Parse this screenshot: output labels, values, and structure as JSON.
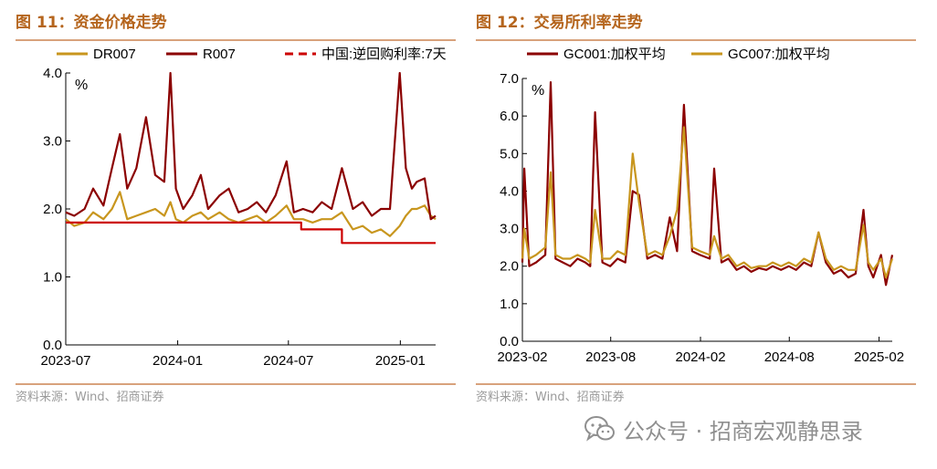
{
  "left": {
    "title": "图 11：资金价格走势",
    "source": "资料来源：Wind、招商证券"
  },
  "right": {
    "title": "图 12：交易所利率走势",
    "source": "资料来源：Wind、招商证券"
  },
  "watermark": {
    "icon": "wechat-icon",
    "text": "公众号 · 招商宏观静思录"
  },
  "colors": {
    "dark_red": "#8b0000",
    "gold": "#c8961e",
    "red": "#cc0000",
    "title": "#b5651d"
  },
  "chart_data": [
    {
      "type": "line",
      "unit_label": "%",
      "ylim": [
        0,
        4.0
      ],
      "yticks": [
        "0.0",
        "1.0",
        "2.0",
        "3.0",
        "4.0"
      ],
      "xticks": [
        {
          "date": "2023-07-01",
          "label": "2023-07"
        },
        {
          "date": "2024-01-01",
          "label": "2024-01"
        },
        {
          "date": "2024-07-01",
          "label": "2024-07"
        },
        {
          "date": "2025-01-01",
          "label": "2025-01"
        }
      ],
      "xrange": [
        "2023-07-01",
        "2025-02-28"
      ],
      "grid": false,
      "legend": "top",
      "series": [
        {
          "name": "DR007",
          "style": "solid",
          "color": "#c8961e",
          "x": [
            "2023-07-01",
            "2023-07-15",
            "2023-08-01",
            "2023-08-15",
            "2023-09-01",
            "2023-09-15",
            "2023-09-28",
            "2023-10-10",
            "2023-10-25",
            "2023-11-10",
            "2023-11-25",
            "2023-12-10",
            "2023-12-20",
            "2023-12-29",
            "2024-01-10",
            "2024-01-25",
            "2024-02-08",
            "2024-02-20",
            "2024-03-10",
            "2024-03-25",
            "2024-04-10",
            "2024-04-25",
            "2024-05-10",
            "2024-05-25",
            "2024-06-10",
            "2024-06-28",
            "2024-07-10",
            "2024-07-25",
            "2024-08-10",
            "2024-08-25",
            "2024-09-10",
            "2024-09-27",
            "2024-10-15",
            "2024-10-31",
            "2024-11-15",
            "2024-11-30",
            "2024-12-15",
            "2024-12-31",
            "2025-01-10",
            "2025-01-20",
            "2025-01-28",
            "2025-02-10",
            "2025-02-20",
            "2025-02-28"
          ],
          "y": [
            1.85,
            1.75,
            1.8,
            1.95,
            1.85,
            2.0,
            2.25,
            1.85,
            1.9,
            1.95,
            2.0,
            1.9,
            2.1,
            1.85,
            1.8,
            1.9,
            1.95,
            1.85,
            1.95,
            1.85,
            1.8,
            1.85,
            1.9,
            1.8,
            1.9,
            2.05,
            1.85,
            1.85,
            1.8,
            1.85,
            1.85,
            1.95,
            1.7,
            1.75,
            1.65,
            1.7,
            1.6,
            1.75,
            1.9,
            2.0,
            2.0,
            2.05,
            1.9,
            1.85
          ]
        },
        {
          "name": "R007",
          "style": "solid",
          "color": "#8b0000",
          "x": [
            "2023-07-01",
            "2023-07-15",
            "2023-08-01",
            "2023-08-15",
            "2023-09-01",
            "2023-09-15",
            "2023-09-28",
            "2023-10-10",
            "2023-10-25",
            "2023-11-10",
            "2023-11-25",
            "2023-12-10",
            "2023-12-20",
            "2023-12-29",
            "2024-01-10",
            "2024-01-25",
            "2024-02-08",
            "2024-02-20",
            "2024-03-10",
            "2024-03-25",
            "2024-04-10",
            "2024-04-25",
            "2024-05-10",
            "2024-05-25",
            "2024-06-10",
            "2024-06-28",
            "2024-07-10",
            "2024-07-25",
            "2024-08-10",
            "2024-08-25",
            "2024-09-10",
            "2024-09-27",
            "2024-10-15",
            "2024-10-31",
            "2024-11-15",
            "2024-11-30",
            "2024-12-15",
            "2024-12-31",
            "2025-01-10",
            "2025-01-20",
            "2025-01-28",
            "2025-02-10",
            "2025-02-20",
            "2025-02-28"
          ],
          "y": [
            1.95,
            1.9,
            2.0,
            2.3,
            2.05,
            2.6,
            3.1,
            2.3,
            2.6,
            3.35,
            2.5,
            2.4,
            4.0,
            2.3,
            2.0,
            2.2,
            2.5,
            2.0,
            2.2,
            2.3,
            1.95,
            2.0,
            2.1,
            1.95,
            2.2,
            2.7,
            1.95,
            2.0,
            1.95,
            2.1,
            2.0,
            2.6,
            2.0,
            2.1,
            1.9,
            2.0,
            2.0,
            4.0,
            2.6,
            2.3,
            2.4,
            2.45,
            1.85,
            1.9
          ]
        },
        {
          "name": "中国:逆回购利率:7天",
          "style": "dashed",
          "color": "#cc0000",
          "x": [
            "2023-07-01",
            "2024-07-22",
            "2024-07-22",
            "2024-09-27",
            "2024-09-27",
            "2025-02-28"
          ],
          "y": [
            1.8,
            1.8,
            1.7,
            1.7,
            1.5,
            1.5
          ]
        }
      ]
    },
    {
      "type": "line",
      "unit_label": "%",
      "ylim": [
        0,
        7.0
      ],
      "yticks": [
        "0.0",
        "1.0",
        "2.0",
        "3.0",
        "4.0",
        "5.0",
        "6.0",
        "7.0"
      ],
      "xticks": [
        {
          "date": "2023-02-01",
          "label": "2023-02"
        },
        {
          "date": "2023-08-01",
          "label": "2023-08"
        },
        {
          "date": "2024-02-01",
          "label": "2024-02"
        },
        {
          "date": "2024-08-01",
          "label": "2024-08"
        },
        {
          "date": "2025-02-01",
          "label": "2025-02"
        }
      ],
      "xrange": [
        "2023-02-01",
        "2025-02-28"
      ],
      "grid": false,
      "legend": "top",
      "series": [
        {
          "name": "GC001:加权平均",
          "style": "solid",
          "color": "#8b0000",
          "x": [
            "2023-02-01",
            "2023-02-05",
            "2023-02-15",
            "2023-03-01",
            "2023-03-20",
            "2023-03-31",
            "2023-04-10",
            "2023-04-25",
            "2023-05-10",
            "2023-05-25",
            "2023-06-10",
            "2023-06-20",
            "2023-06-30",
            "2023-07-15",
            "2023-07-31",
            "2023-08-15",
            "2023-08-31",
            "2023-09-15",
            "2023-09-28",
            "2023-10-15",
            "2023-10-31",
            "2023-11-15",
            "2023-11-30",
            "2023-12-15",
            "2023-12-29",
            "2024-01-15",
            "2024-01-31",
            "2024-02-20",
            "2024-02-29",
            "2024-03-15",
            "2024-03-29",
            "2024-04-15",
            "2024-04-30",
            "2024-05-15",
            "2024-05-31",
            "2024-06-15",
            "2024-06-28",
            "2024-07-15",
            "2024-07-31",
            "2024-08-15",
            "2024-08-31",
            "2024-09-15",
            "2024-09-30",
            "2024-10-15",
            "2024-10-31",
            "2024-11-15",
            "2024-11-30",
            "2024-12-15",
            "2024-12-31",
            "2025-01-10",
            "2025-01-20",
            "2025-02-05",
            "2025-02-15",
            "2025-02-28"
          ],
          "y": [
            2.1,
            4.6,
            2.0,
            2.1,
            2.3,
            6.9,
            2.2,
            2.1,
            2.0,
            2.2,
            2.1,
            2.0,
            6.1,
            2.1,
            2.0,
            2.2,
            2.1,
            4.0,
            3.9,
            2.2,
            2.3,
            2.2,
            3.3,
            2.4,
            6.3,
            2.4,
            2.3,
            2.2,
            4.6,
            2.1,
            2.2,
            1.9,
            2.0,
            1.85,
            1.95,
            1.9,
            2.0,
            1.9,
            2.0,
            1.9,
            2.1,
            2.0,
            2.9,
            2.1,
            1.8,
            1.9,
            1.7,
            1.8,
            3.5,
            2.0,
            1.7,
            2.3,
            1.5,
            2.3
          ]
        },
        {
          "name": "GC007:加权平均",
          "style": "solid",
          "color": "#c8961e",
          "x": [
            "2023-02-01",
            "2023-02-05",
            "2023-02-15",
            "2023-03-01",
            "2023-03-20",
            "2023-03-31",
            "2023-04-10",
            "2023-04-25",
            "2023-05-10",
            "2023-05-25",
            "2023-06-10",
            "2023-06-20",
            "2023-06-30",
            "2023-07-15",
            "2023-07-31",
            "2023-08-15",
            "2023-08-31",
            "2023-09-15",
            "2023-09-28",
            "2023-10-15",
            "2023-10-31",
            "2023-11-15",
            "2023-11-30",
            "2023-12-15",
            "2023-12-29",
            "2024-01-15",
            "2024-01-31",
            "2024-02-20",
            "2024-02-29",
            "2024-03-15",
            "2024-03-29",
            "2024-04-15",
            "2024-04-30",
            "2024-05-15",
            "2024-05-31",
            "2024-06-15",
            "2024-06-28",
            "2024-07-15",
            "2024-07-31",
            "2024-08-15",
            "2024-08-31",
            "2024-09-15",
            "2024-09-30",
            "2024-10-15",
            "2024-10-31",
            "2024-11-15",
            "2024-11-30",
            "2024-12-15",
            "2024-12-31",
            "2025-01-10",
            "2025-01-20",
            "2025-02-05",
            "2025-02-15",
            "2025-02-28"
          ],
          "y": [
            2.2,
            3.0,
            2.2,
            2.3,
            2.5,
            4.5,
            2.3,
            2.2,
            2.2,
            2.3,
            2.2,
            2.1,
            3.5,
            2.2,
            2.2,
            2.4,
            2.3,
            5.0,
            3.7,
            2.3,
            2.4,
            2.3,
            2.8,
            3.5,
            5.7,
            2.5,
            2.4,
            2.3,
            2.8,
            2.2,
            2.3,
            2.0,
            2.1,
            1.95,
            2.0,
            2.0,
            2.1,
            2.0,
            2.1,
            2.0,
            2.2,
            2.1,
            2.9,
            2.2,
            1.9,
            2.0,
            1.9,
            1.9,
            3.1,
            2.1,
            1.9,
            2.2,
            1.7,
            2.2
          ]
        }
      ]
    }
  ]
}
